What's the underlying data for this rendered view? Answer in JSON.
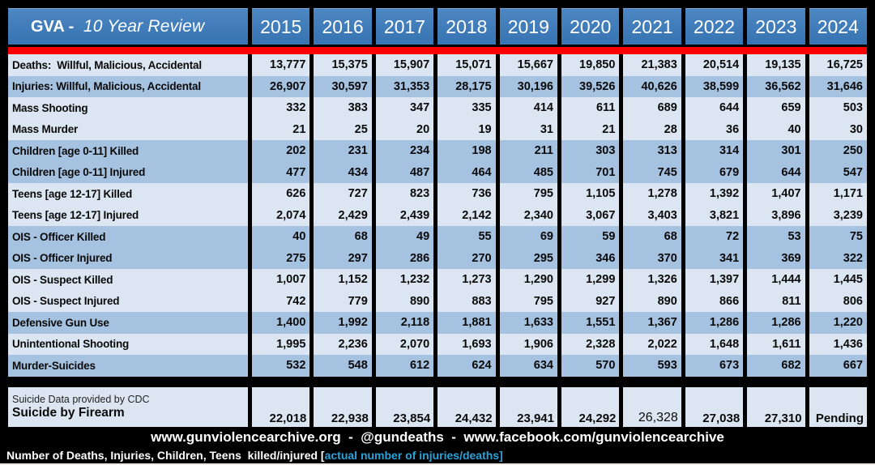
{
  "colors": {
    "background": "#000000",
    "header_blue": "#3A76B4",
    "header_blue_light": "#4C87C3",
    "row_light": "#DCE6F2",
    "row_medium": "#A6C2E1",
    "red_stripe": "#FF0000",
    "cyan_text": "#2AA2DC",
    "text_dark": "#0A0A0A",
    "text_white": "#FFFFFF"
  },
  "header": {
    "title_main": "GVA - ",
    "title_italic": "10 Year Review"
  },
  "chart_data": {
    "type": "table",
    "title": "GVA - 10 Year Review",
    "categories": [
      "2015",
      "2016",
      "2017",
      "2018",
      "2019",
      "2020",
      "2021",
      "2022",
      "2023",
      "2024"
    ],
    "series": [
      {
        "name": "Deaths:  Willful, Malicious, Accidental",
        "shade": "light",
        "values": [
          "13,777",
          "15,375",
          "15,907",
          "15,071",
          "15,667",
          "19,850",
          "21,383",
          "20,514",
          "19,135",
          "16,725"
        ]
      },
      {
        "name": "Injuries: Willful, Malicious, Accidental",
        "shade": "medium",
        "values": [
          "26,907",
          "30,597",
          "31,353",
          "28,175",
          "30,196",
          "39,526",
          "40,626",
          "38,599",
          "36,562",
          "31,646"
        ]
      },
      {
        "name": "Mass Shooting",
        "shade": "light",
        "values": [
          "332",
          "383",
          "347",
          "335",
          "414",
          "611",
          "689",
          "644",
          "659",
          "503"
        ]
      },
      {
        "name": "Mass Murder",
        "shade": "light",
        "values": [
          "21",
          "25",
          "20",
          "19",
          "31",
          "21",
          "28",
          "36",
          "40",
          "30"
        ]
      },
      {
        "name": "Children [age 0-11] Killed",
        "shade": "medium",
        "values": [
          "202",
          "231",
          "234",
          "198",
          "211",
          "303",
          "313",
          "314",
          "301",
          "250"
        ]
      },
      {
        "name": "Children [age 0-11] Injured",
        "shade": "medium",
        "values": [
          "477",
          "434",
          "487",
          "464",
          "485",
          "701",
          "745",
          "679",
          "644",
          "547"
        ]
      },
      {
        "name": "Teens [age 12-17] Killed",
        "shade": "light",
        "values": [
          "626",
          "727",
          "823",
          "736",
          "795",
          "1,105",
          "1,278",
          "1,392",
          "1,407",
          "1,171"
        ]
      },
      {
        "name": "Teens [age 12-17] Injured",
        "shade": "light",
        "values": [
          "2,074",
          "2,429",
          "2,439",
          "2,142",
          "2,340",
          "3,067",
          "3,403",
          "3,821",
          "3,896",
          "3,239"
        ]
      },
      {
        "name": "OIS - Officer Killed",
        "shade": "medium",
        "values": [
          "40",
          "68",
          "49",
          "55",
          "69",
          "59",
          "68",
          "72",
          "53",
          "75"
        ]
      },
      {
        "name": "OIS - Officer Injured",
        "shade": "medium",
        "values": [
          "275",
          "297",
          "286",
          "270",
          "295",
          "346",
          "370",
          "341",
          "369",
          "322"
        ]
      },
      {
        "name": "OIS - Suspect Killed",
        "shade": "light",
        "values": [
          "1,007",
          "1,152",
          "1,232",
          "1,273",
          "1,290",
          "1,299",
          "1,326",
          "1,397",
          "1,444",
          "1,445"
        ]
      },
      {
        "name": "OIS - Suspect Injured",
        "shade": "light",
        "values": [
          "742",
          "779",
          "890",
          "883",
          "795",
          "927",
          "890",
          "866",
          "811",
          "806"
        ]
      },
      {
        "name": "Defensive Gun Use",
        "shade": "medium",
        "values": [
          "1,400",
          "1,992",
          "2,118",
          "1,881",
          "1,633",
          "1,551",
          "1,367",
          "1,286",
          "1,286",
          "1,220"
        ]
      },
      {
        "name": "Unintentional Shooting",
        "shade": "light",
        "values": [
          "1,995",
          "2,236",
          "2,070",
          "1,693",
          "1,906",
          "2,328",
          "2,022",
          "1,648",
          "1,611",
          "1,436"
        ]
      },
      {
        "name": "Murder-Suicides",
        "shade": "medium",
        "values": [
          "532",
          "548",
          "612",
          "624",
          "634",
          "570",
          "593",
          "673",
          "682",
          "667"
        ]
      }
    ],
    "cdc": {
      "note": "Suicide Data provided by CDC",
      "name": "Suicide by Firearm",
      "values": [
        "22,018",
        "22,938",
        "23,854",
        "24,432",
        "23,941",
        "24,292",
        "26,328",
        "27,038",
        "27,310",
        "Pending"
      ],
      "light_value_indexes": [
        6
      ]
    }
  },
  "footer": {
    "links": "www.gunviolencearchive.org  -  @gundeaths  -  www.facebook.com/gunviolencearchive",
    "footnote_white": "Number of Deaths, Injuries, Children, Teens  killed/injured [",
    "footnote_blue": "actual number of injuries/deaths]"
  }
}
